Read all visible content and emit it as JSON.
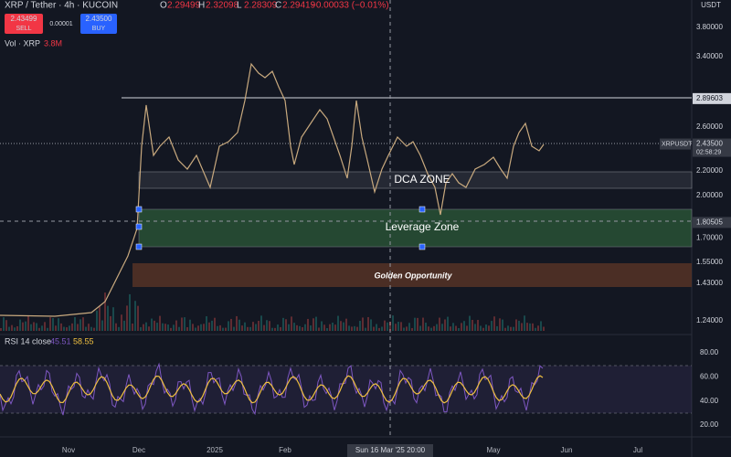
{
  "header": {
    "symbol": "XRP / Tether · 4h · KUCOIN",
    "ohlc": [
      {
        "label": "O",
        "value": "2.29499"
      },
      {
        "label": "H",
        "value": "2.32098"
      },
      {
        "label": "L",
        "value": "2.28309"
      },
      {
        "label": "C",
        "value": "2.29419"
      }
    ],
    "change": "−0.00033 (−0.01%)",
    "sell": {
      "price": "2.43499",
      "label": "SELL"
    },
    "spread": "0.00001",
    "buy": {
      "price": "2.43500",
      "label": "BUY"
    },
    "volume": {
      "label": "Vol · XRP",
      "value": "3.8M"
    }
  },
  "currency": "USDT",
  "price_axis": {
    "ticks": [
      "3.80000",
      "3.40000",
      "2.60000",
      "2.20000",
      "2.00000",
      "1.70000",
      "1.55000",
      "1.43000",
      "1.24000"
    ],
    "level": "2.89603",
    "current": {
      "symbol": "XRPUSDT",
      "price": "2.43500",
      "countdown": "02:58:29"
    },
    "crosshair": "1.80505"
  },
  "annotations": [
    "DCA ZONE",
    "Leverage Zone",
    "Golden Opportunity"
  ],
  "rsi": {
    "label": "RSI 14 close",
    "values": [
      "45.51",
      "58.55"
    ],
    "ticks": [
      "80.00",
      "60.00",
      "40.00",
      "20.00"
    ]
  },
  "time_axis": {
    "labels": [
      "Nov",
      "Dec",
      "2025",
      "Feb",
      "May",
      "Jun",
      "Jul"
    ],
    "crosshair": "Sun 16 Mar '25 20:00"
  }
}
